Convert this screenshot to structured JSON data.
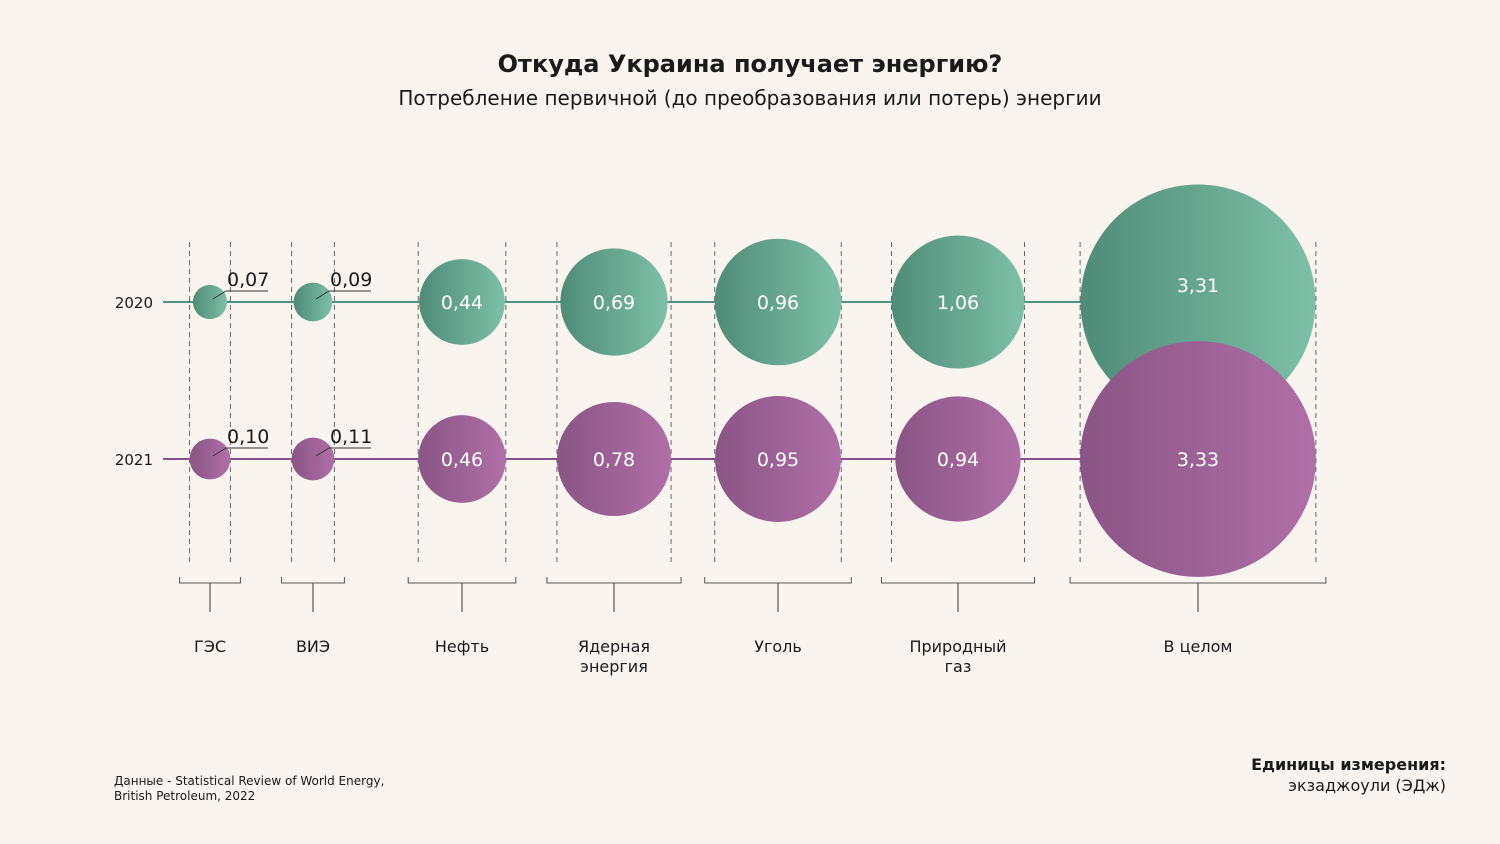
{
  "title": "Откуда Украина получает энергию?",
  "subtitle": "Потребление первичной (до преобразования или потерь) энергии",
  "source": {
    "line1": "Данные - Statistical Review of World Energy,",
    "line2": "British Petroleum, 2022"
  },
  "units": {
    "title": "Единицы измерения:",
    "value": "экзаджоули (ЭДж)"
  },
  "colors": {
    "series_2020_dark": "#4f8c78",
    "series_2020_light": "#7ec0a7",
    "series_2021_dark": "#8a5585",
    "series_2021_light": "#b06fa6",
    "line_2020": "#4d9480",
    "line_2021": "#8d4f89",
    "background": "#f9f4f0"
  },
  "chart_data": {
    "type": "bubble",
    "categories": [
      "ГЭС",
      "ВИЭ",
      "Нефть",
      "Ядерная энергия",
      "Уголь",
      "Природный газ",
      "В целом"
    ],
    "category_label_lines": [
      [
        "ГЭС"
      ],
      [
        "ВИЭ"
      ],
      [
        "Нефть"
      ],
      [
        "Ядерная",
        "энергия"
      ],
      [
        "Уголь"
      ],
      [
        "Природный",
        "газ"
      ],
      [
        "В целом"
      ]
    ],
    "series": [
      {
        "name": "2020",
        "values": [
          0.07,
          0.09,
          0.44,
          0.69,
          0.96,
          1.06,
          3.31
        ],
        "labels": [
          "0,07",
          "0,09",
          "0,44",
          "0,69",
          "0,96",
          "1,06",
          "3,31"
        ]
      },
      {
        "name": "2021",
        "values": [
          0.1,
          0.11,
          0.46,
          0.78,
          0.95,
          0.94,
          3.33
        ],
        "labels": [
          "0,10",
          "0,11",
          "0,46",
          "0,78",
          "0,95",
          "0,94",
          "3,33"
        ]
      }
    ]
  }
}
